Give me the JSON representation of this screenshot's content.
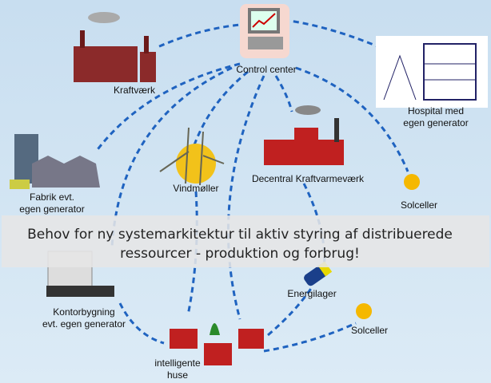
{
  "nodes": [
    {
      "label": [
        "Control center"
      ]
    },
    {
      "label": [
        "Kraftværk"
      ]
    },
    {
      "label": [
        "Hospital med",
        "egen generator"
      ]
    },
    {
      "label": [
        "Fabrik evt.",
        "egen generator"
      ]
    },
    {
      "label": [
        "Vindmøller"
      ]
    },
    {
      "label": [
        "Decentral Kraftvarmeværk"
      ]
    },
    {
      "label": [
        "Solceller"
      ]
    },
    {
      "label": [
        "Energilager"
      ]
    },
    {
      "label": [
        "Kontorbygning",
        "evt. egen generator"
      ]
    },
    {
      "label": [
        "Solceller"
      ]
    },
    {
      "label": [
        "intelligente",
        "huse"
      ]
    }
  ],
  "banner": [
    "Behov for ny systemarkitektur til aktiv styring af distribuerede",
    "ressourcer - produktion og forbrug!"
  ]
}
